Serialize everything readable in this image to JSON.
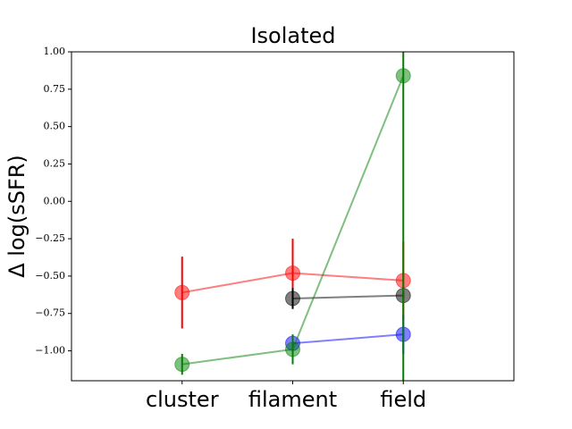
{
  "chart_data": {
    "type": "errorbar_line",
    "title": "Isolated",
    "ylabel": "Δ log(sSFR)",
    "categories": [
      "cluster",
      "filament",
      "field"
    ],
    "xlim": [
      -1,
      3
    ],
    "ylim": [
      -1.2,
      1.0
    ],
    "yticks": [
      {
        "value": 1.0,
        "label": "1.00"
      },
      {
        "value": 0.75,
        "label": "0.75"
      },
      {
        "value": 0.5,
        "label": "0.50"
      },
      {
        "value": 0.25,
        "label": "0.25"
      },
      {
        "value": 0.0,
        "label": "0.00"
      },
      {
        "value": -0.25,
        "label": "−0.25"
      },
      {
        "value": -0.5,
        "label": "−0.50"
      },
      {
        "value": -0.75,
        "label": "−0.75"
      },
      {
        "value": -1.0,
        "label": "−1.00"
      }
    ],
    "series": [
      {
        "color": "#ff0000",
        "values": [
          -0.61,
          -0.48,
          -0.53
        ],
        "errors": [
          0.24,
          0.23,
          0.26
        ]
      },
      {
        "color": "#000000",
        "values": [
          null,
          -0.65,
          -0.63
        ],
        "errors": [
          null,
          0.07,
          0.02
        ]
      },
      {
        "color": "#0000ff",
        "values": [
          null,
          -0.95,
          -0.89
        ],
        "errors": [
          null,
          0.05,
          0.13
        ]
      },
      {
        "color": "#008000",
        "values": [
          -1.09,
          -0.99,
          0.84
        ],
        "errors": [
          0.07,
          0.1,
          2.5
        ]
      }
    ]
  }
}
